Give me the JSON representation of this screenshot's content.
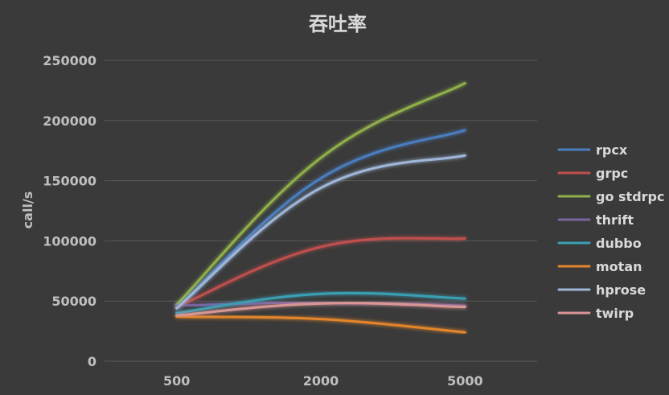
{
  "chart_data": {
    "type": "line",
    "title": "吞吐率",
    "xlabel": "",
    "ylabel": "call/s",
    "categories": [
      "500",
      "2000",
      "5000"
    ],
    "ylim": [
      0,
      250000
    ],
    "yticks": [
      0,
      50000,
      100000,
      150000,
      200000,
      250000
    ],
    "ytick_labels": [
      "0",
      "50000",
      "100000",
      "150000",
      "200000",
      "250000"
    ],
    "grid": true,
    "legend_position": "right",
    "series": [
      {
        "name": "rpcx",
        "color": "#4a7ebf",
        "values": [
          44000,
          152000,
          192000
        ]
      },
      {
        "name": "grpc",
        "color": "#c0504d",
        "values": [
          45000,
          95000,
          102000
        ]
      },
      {
        "name": "go stdrpc",
        "color": "#8fb04a",
        "values": [
          47000,
          169000,
          231000
        ]
      },
      {
        "name": "thrift",
        "color": "#7b64a0",
        "values": [
          46000,
          49000,
          46000
        ]
      },
      {
        "name": "dubbo",
        "color": "#3b9fb4",
        "values": [
          40000,
          56000,
          52000
        ]
      },
      {
        "name": "motan",
        "color": "#e3852b",
        "values": [
          37000,
          35000,
          24000
        ]
      },
      {
        "name": "hprose",
        "color": "#9fb6d8",
        "values": [
          44000,
          144000,
          171000
        ]
      },
      {
        "name": "twirp",
        "color": "#d99694",
        "values": [
          38000,
          48000,
          45000
        ]
      }
    ]
  }
}
